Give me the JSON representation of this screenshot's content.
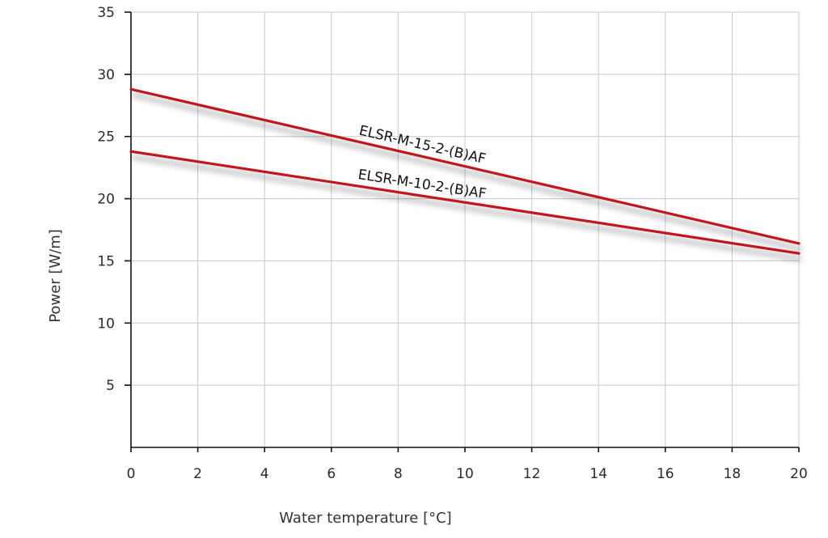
{
  "chart_data": {
    "type": "line",
    "title": "",
    "xlabel": "Water temperature [°C]",
    "ylabel": "Power [W/m]",
    "xlim": [
      0,
      20
    ],
    "ylim": [
      0,
      35
    ],
    "x_ticks": [
      0,
      2,
      4,
      6,
      8,
      10,
      12,
      14,
      16,
      18,
      20
    ],
    "y_ticks": [
      5,
      10,
      15,
      20,
      25,
      30,
      35
    ],
    "grid": true,
    "legend": "none",
    "line_color": "#c0161f",
    "series": [
      {
        "name": "ELSR-M-15-2-(B)AF",
        "x": [
          0,
          20
        ],
        "y": [
          28.8,
          16.4
        ]
      },
      {
        "name": "ELSR-M-10-2-(B)AF",
        "x": [
          0,
          20
        ],
        "y": [
          23.8,
          15.6
        ]
      }
    ]
  }
}
